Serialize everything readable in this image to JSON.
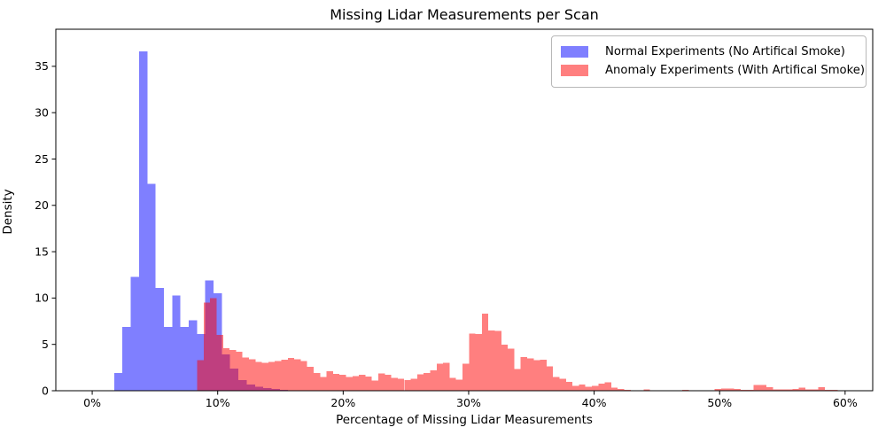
{
  "chart_data": {
    "type": "histogram",
    "title": "Missing Lidar Measurements per Scan",
    "xlabel": "Percentage of Missing Lidar Measurements",
    "ylabel": "Density",
    "x_ticks": [
      0,
      10,
      20,
      30,
      40,
      50,
      60
    ],
    "x_tick_labels": [
      "0%",
      "10%",
      "20%",
      "30%",
      "40%",
      "50%",
      "60%"
    ],
    "y_ticks": [
      0,
      5,
      10,
      15,
      20,
      25,
      30,
      35
    ],
    "y_tick_labels": [
      "0",
      "5",
      "10",
      "15",
      "20",
      "25",
      "30",
      "35"
    ],
    "x_range_pct": [
      -2.9,
      62.2
    ],
    "y_range": [
      0,
      39
    ],
    "grid": false,
    "legend_position": "upper-right",
    "colors": {
      "normal_base": "#0000ff",
      "anomaly_base": "#ff0000",
      "alpha": 0.5,
      "normal_fill_on_white": "#7f7fff",
      "anomaly_fill_on_white": "#ff7f7f",
      "overlap_fill": "#bf3f9f",
      "spine": "#000000"
    },
    "legend": {
      "entries": [
        {
          "label": "Normal Experiments (No Artifical Smoke)",
          "series": "normal"
        },
        {
          "label": "Anomaly Experiments (With Artifical Smoke)",
          "series": "anomaly"
        }
      ]
    },
    "series": [
      {
        "name": "normal",
        "label": "Normal Experiments (No Artifical Smoke)",
        "base_color": "#0000ff",
        "alpha": 0.5,
        "bin_start_pct": 1.75,
        "bin_width_pct": 0.66,
        "densities": [
          1.9,
          6.9,
          12.3,
          36.6,
          22.3,
          11.1,
          6.9,
          10.3,
          6.9,
          7.6,
          6.1,
          11.9,
          10.5,
          3.9,
          2.4,
          1.15,
          0.65,
          0.45,
          0.28,
          0.18,
          0.1,
          0.06
        ]
      },
      {
        "name": "anomaly",
        "label": "Anomaly Experiments (With Artifical Smoke)",
        "base_color": "#ff0000",
        "alpha": 0.5,
        "bin_start_pct": 8.37,
        "bin_width_pct": 0.5155,
        "densities": [
          3.3,
          9.5,
          10.0,
          6.0,
          4.6,
          4.4,
          4.2,
          3.6,
          3.4,
          3.1,
          3.0,
          3.1,
          3.2,
          3.35,
          3.55,
          3.4,
          3.2,
          2.6,
          1.9,
          1.5,
          2.1,
          1.8,
          1.7,
          1.5,
          1.6,
          1.7,
          1.55,
          1.1,
          1.85,
          1.7,
          1.4,
          1.3,
          1.15,
          1.3,
          1.75,
          1.9,
          2.2,
          2.9,
          3.0,
          1.4,
          1.2,
          2.9,
          6.15,
          6.1,
          8.3,
          6.5,
          6.45,
          4.95,
          4.55,
          2.35,
          3.65,
          3.5,
          3.3,
          3.35,
          2.65,
          1.5,
          1.3,
          0.95,
          0.55,
          0.65,
          0.45,
          0.55,
          0.75,
          0.9,
          0.35,
          0.2,
          0.1,
          0,
          0,
          0.12,
          0,
          0,
          0,
          0,
          0,
          0.1,
          0.05,
          0,
          0,
          0,
          0.2,
          0.25,
          0.25,
          0.2,
          0.1,
          0.1,
          0.6,
          0.6,
          0.4,
          0.15,
          0.15,
          0.15,
          0.2,
          0.35,
          0.15,
          0.15,
          0.4,
          0.1,
          0.1,
          0.05
        ]
      }
    ]
  }
}
